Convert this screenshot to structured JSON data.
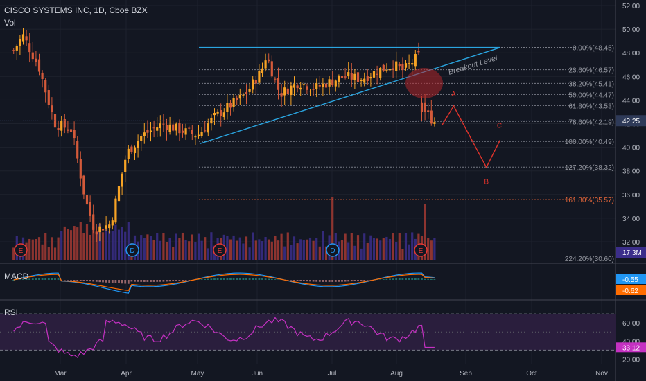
{
  "header": {
    "title": "CISCO SYSTEMS INC, 1D, Cboe BZX",
    "vol_label": "Vol"
  },
  "colors": {
    "background": "#131722",
    "up": "#f7a325",
    "down": "#d45a3a",
    "volume": "#3b2e8a",
    "volume_red": "#a33a32",
    "trendline": "#2aa5e0",
    "fib": "#787b86",
    "fib_extension": "#e8673a",
    "projection": "#e0332b",
    "macd_line": "#2196f3",
    "signal_line": "#ff6d00",
    "rsi_line": "#c531c2",
    "rsi_band": "#2a1e3d"
  },
  "chart_data": [
    {
      "type": "candlestick",
      "title": "CISCO SYSTEMS INC, 1D, Cboe BZX",
      "y_axis_ticks": [
        52.0,
        50.0,
        48.0,
        46.0,
        44.0,
        42.0,
        40.0,
        38.0,
        36.0,
        34.0,
        32.0
      ],
      "ylim": [
        30.7,
        52.5
      ],
      "x_axis_labels": [
        "Mar",
        "Apr",
        "May",
        "Jun",
        "Jul",
        "Aug",
        "Sep",
        "Oct",
        "Nov"
      ],
      "current_price": "42.25",
      "current_volume": "17.3M",
      "fib_levels": [
        {
          "label": "0.00%(48.45)",
          "price": 48.45
        },
        {
          "label": "23.60%(46.57)",
          "price": 46.57
        },
        {
          "label": "38.20%(45.41)",
          "price": 45.41
        },
        {
          "label": "50.00%(44.47)",
          "price": 44.47
        },
        {
          "label": "61.80%(43.53)",
          "price": 43.53
        },
        {
          "label": "78.60%(42.19)",
          "price": 42.19
        },
        {
          "label": "100.00%(40.49)",
          "price": 40.49
        },
        {
          "label": "127.20%(38.32)",
          "price": 38.32
        },
        {
          "label": "161.80%(35.57)",
          "price": 35.57
        },
        {
          "label": "224.20%(30.60)",
          "price": 30.6
        }
      ],
      "annotations": {
        "breakout_label": "Breakout Level",
        "wave_labels": [
          "A",
          "B",
          "C"
        ],
        "wave_points": [
          [
            41.9,
            "Aug 21"
          ],
          [
            43.5,
            "Aug 26"
          ],
          [
            38.3,
            "Sep 10"
          ],
          [
            40.6,
            "Sep 16"
          ]
        ],
        "event_markers": [
          "E",
          "D",
          "E",
          "D",
          "E"
        ]
      },
      "ohlc_close_estimates": [
        {
          "date": "Feb 10",
          "close": 48.2
        },
        {
          "date": "Feb 14",
          "close": 49.5
        },
        {
          "date": "Feb 21",
          "close": 46.8
        },
        {
          "date": "Feb 28",
          "close": 42.0
        },
        {
          "date": "Mar 6",
          "close": 41.5
        },
        {
          "date": "Mar 12",
          "close": 35.5
        },
        {
          "date": "Mar 16",
          "close": 33.0
        },
        {
          "date": "Mar 23",
          "close": 33.5
        },
        {
          "date": "Mar 30",
          "close": 39.5
        },
        {
          "date": "Apr 8",
          "close": 41.0
        },
        {
          "date": "Apr 17",
          "close": 42.0
        },
        {
          "date": "Apr 24",
          "close": 41.5
        },
        {
          "date": "May 1",
          "close": 41.0
        },
        {
          "date": "May 8",
          "close": 42.5
        },
        {
          "date": "May 15",
          "close": 43.5
        },
        {
          "date": "May 22",
          "close": 44.5
        },
        {
          "date": "May 29",
          "close": 46.5
        },
        {
          "date": "Jun 5",
          "close": 47.8
        },
        {
          "date": "Jun 11",
          "close": 44.5
        },
        {
          "date": "Jun 19",
          "close": 45.5
        },
        {
          "date": "Jun 26",
          "close": 45.0
        },
        {
          "date": "Jul 6",
          "close": 46.0
        },
        {
          "date": "Jul 14",
          "close": 45.8
        },
        {
          "date": "Jul 21",
          "close": 46.5
        },
        {
          "date": "Jul 28",
          "close": 47.0
        },
        {
          "date": "Aug 4",
          "close": 46.5
        },
        {
          "date": "Aug 12",
          "close": 48.0
        },
        {
          "date": "Aug 13",
          "close": 43.0
        },
        {
          "date": "Aug 18",
          "close": 42.1
        }
      ]
    },
    {
      "type": "line",
      "title": "MACD",
      "value_labels": [
        "-0.55",
        "-0.62"
      ],
      "series": []
    },
    {
      "type": "line",
      "title": "RSI",
      "y_axis_ticks": [
        60.0,
        40.0,
        20.0
      ],
      "ylim": [
        15,
        80
      ],
      "bands": [
        70,
        30
      ],
      "current_value": "33.12",
      "series": []
    }
  ]
}
